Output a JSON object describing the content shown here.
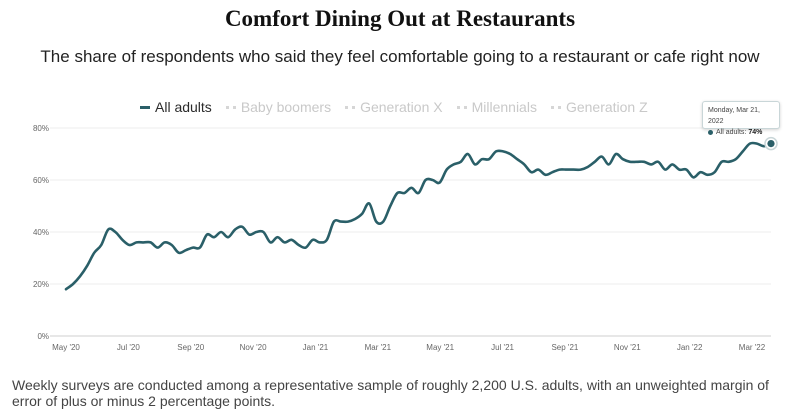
{
  "chart_data": {
    "type": "line",
    "title": "Comfort Dining Out at Restaurants",
    "subtitle": "The share of respondents who said they feel comfortable going to a restaurant or cafe right now",
    "xlabel": "",
    "ylabel": "",
    "ylim": [
      0,
      80
    ],
    "y_ticks": [
      0,
      20,
      40,
      60,
      80
    ],
    "y_tick_labels": [
      "0%",
      "20%",
      "40%",
      "60%",
      "80%"
    ],
    "x_ticks": [
      "May '20",
      "Jul '20",
      "Sep '20",
      "Nov '20",
      "Jan '21",
      "Mar '21",
      "May '21",
      "Jul '21",
      "Sep '21",
      "Nov '21",
      "Jan '22",
      "Mar '22"
    ],
    "legend": [
      "All adults",
      "Baby boomers",
      "Generation X",
      "Millennials",
      "Generation Z"
    ],
    "series": [
      {
        "name": "All adults",
        "color": "#2a5f68",
        "points": [
          [
            0,
            18
          ],
          [
            1,
            20
          ],
          [
            2,
            23
          ],
          [
            3,
            27
          ],
          [
            4,
            32
          ],
          [
            5,
            35
          ],
          [
            6,
            41
          ],
          [
            7,
            40
          ],
          [
            8,
            37
          ],
          [
            9,
            35
          ],
          [
            10,
            36
          ],
          [
            11,
            36
          ],
          [
            12,
            36
          ],
          [
            13,
            34
          ],
          [
            14,
            36
          ],
          [
            15,
            35
          ],
          [
            16,
            32
          ],
          [
            17,
            33
          ],
          [
            18,
            34
          ],
          [
            19,
            34
          ],
          [
            20,
            39
          ],
          [
            21,
            38
          ],
          [
            22,
            40
          ],
          [
            23,
            38
          ],
          [
            24,
            41
          ],
          [
            25,
            42
          ],
          [
            26,
            39
          ],
          [
            27,
            40
          ],
          [
            28,
            40
          ],
          [
            29,
            36
          ],
          [
            30,
            38
          ],
          [
            31,
            36
          ],
          [
            32,
            37
          ],
          [
            33,
            35
          ],
          [
            34,
            34
          ],
          [
            35,
            37
          ],
          [
            36,
            36
          ],
          [
            37,
            37
          ],
          [
            38,
            44
          ],
          [
            39,
            44
          ],
          [
            40,
            44
          ],
          [
            41,
            45
          ],
          [
            42,
            47
          ],
          [
            43,
            51
          ],
          [
            44,
            44
          ],
          [
            45,
            44
          ],
          [
            46,
            50
          ],
          [
            47,
            55
          ],
          [
            48,
            55
          ],
          [
            49,
            57
          ],
          [
            50,
            55
          ],
          [
            51,
            60
          ],
          [
            52,
            60
          ],
          [
            53,
            59
          ],
          [
            54,
            64
          ],
          [
            55,
            66
          ],
          [
            56,
            67
          ],
          [
            57,
            70
          ],
          [
            58,
            66
          ],
          [
            59,
            68
          ],
          [
            60,
            68
          ],
          [
            61,
            71
          ],
          [
            62,
            71
          ],
          [
            63,
            70
          ],
          [
            64,
            68
          ],
          [
            65,
            66
          ],
          [
            66,
            63
          ],
          [
            67,
            64
          ],
          [
            68,
            62
          ],
          [
            69,
            63
          ],
          [
            70,
            64
          ],
          [
            71,
            64
          ],
          [
            72,
            64
          ],
          [
            73,
            64
          ],
          [
            74,
            65
          ],
          [
            75,
            67
          ],
          [
            76,
            69
          ],
          [
            77,
            66
          ],
          [
            78,
            70
          ],
          [
            79,
            68
          ],
          [
            80,
            67
          ],
          [
            81,
            67
          ],
          [
            82,
            67
          ],
          [
            83,
            66
          ],
          [
            84,
            67
          ],
          [
            85,
            64
          ],
          [
            86,
            66
          ],
          [
            87,
            64
          ],
          [
            88,
            64
          ],
          [
            89,
            61
          ],
          [
            90,
            63
          ],
          [
            91,
            62
          ],
          [
            92,
            63
          ],
          [
            93,
            67
          ],
          [
            94,
            67
          ],
          [
            95,
            68
          ],
          [
            96,
            71
          ],
          [
            97,
            74
          ],
          [
            98,
            74
          ],
          [
            99,
            73
          ],
          [
            100,
            74
          ]
        ]
      }
    ],
    "tooltip": {
      "date": "Monday, Mar 21, 2022",
      "label": "All adults:",
      "value": "74%"
    }
  },
  "footnote": "Weekly surveys are conducted among a representative sample of roughly 2,200 U.S. adults, with an unweighted margin of error of plus or minus 2 percentage points."
}
